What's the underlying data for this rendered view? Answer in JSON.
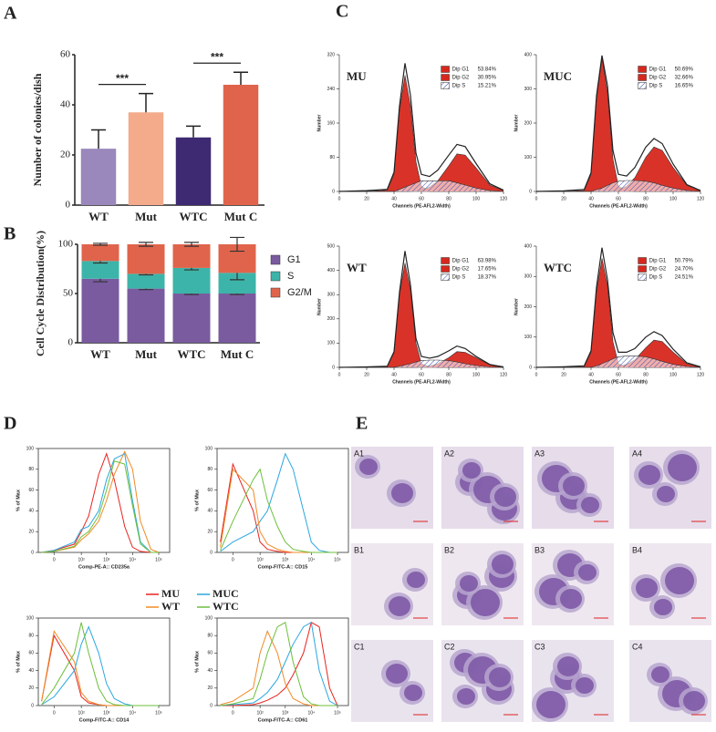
{
  "panel_labels": [
    "A",
    "B",
    "C",
    "D",
    "E"
  ],
  "chart_data": [
    {
      "type": "bar",
      "ylabel": "Number of colonies/dish",
      "categories": [
        "WT",
        "Mut",
        "WTC",
        "Mut C"
      ],
      "values": [
        22.5,
        37,
        27,
        48
      ],
      "errors": [
        7.5,
        7.5,
        4.5,
        5
      ],
      "colors": [
        "#9a87bb",
        "#f3ab8c",
        "#3e2a72",
        "#e0644b"
      ],
      "ylim": [
        0,
        60
      ],
      "yticks": [
        0,
        20,
        40,
        60
      ],
      "annotations": [
        "***",
        "***"
      ]
    },
    {
      "type": "stacked_bar",
      "ylabel": "Cell Cycle Distribution(%)",
      "categories": [
        "WT",
        "Mut",
        "WTC",
        "Mut C"
      ],
      "series": [
        {
          "name": "G1",
          "color": "#7a5b9f",
          "values": [
            65,
            55,
            50,
            50
          ],
          "errors": [
            3,
            1,
            1,
            1
          ]
        },
        {
          "name": "S",
          "color": "#3db4a9",
          "values": [
            18,
            15,
            26,
            21
          ],
          "errors": [
            2,
            1,
            2,
            7
          ]
        },
        {
          "name": "G2/M",
          "color": "#e0644b",
          "values": [
            17,
            30,
            24,
            29
          ],
          "errors": [
            1,
            2,
            2,
            7
          ]
        }
      ],
      "ylim": [
        0,
        100
      ],
      "yticks": [
        0,
        50,
        100
      ]
    },
    {
      "type": "area",
      "label": "MU",
      "xlabel": "Channels (PE-AFL2-Width)",
      "ylabel": "Number",
      "x": [
        0,
        20,
        35,
        40,
        44,
        48,
        52,
        56,
        60,
        66,
        72,
        80,
        86,
        92,
        100,
        110,
        120
      ],
      "xlim": [
        0,
        120
      ],
      "xticks": [
        0,
        20,
        40,
        60,
        80,
        100,
        120
      ],
      "ylim": [
        0,
        320
      ],
      "yticks": [
        0,
        80,
        160,
        240,
        320
      ],
      "categories": [
        "Dip G1",
        "Dip G2",
        "Dip S"
      ],
      "values": [
        53.84,
        30.95,
        15.21
      ],
      "value_labels": [
        "53.84%",
        "30.95%",
        "15.21%"
      ],
      "series": [
        {
          "color": "#d7281e",
          "style": "area",
          "values": [
            0,
            0,
            3,
            40,
            190,
            272,
            200,
            70,
            12,
            0,
            0,
            0,
            0,
            0,
            0,
            0,
            0
          ]
        },
        {
          "color": "#d7281e",
          "style": "area",
          "values": [
            0,
            0,
            0,
            0,
            0,
            0,
            0,
            1,
            3,
            10,
            25,
            60,
            88,
            85,
            55,
            15,
            2
          ]
        },
        {
          "color": "#3b4fb0",
          "style": "hatch",
          "values": [
            0,
            0,
            0,
            0,
            5,
            10,
            15,
            20,
            25,
            25,
            25,
            25,
            20,
            15,
            8,
            2,
            0
          ]
        },
        {
          "color": "#222222",
          "style": "line",
          "values": [
            0,
            2,
            5,
            45,
            200,
            300,
            225,
            90,
            40,
            35,
            50,
            85,
            110,
            105,
            65,
            18,
            3
          ]
        }
      ]
    },
    {
      "type": "area",
      "label": "MUC",
      "xlabel": "Channels (PE-AFL2-Width)",
      "ylabel": "Number",
      "x": [
        0,
        20,
        35,
        40,
        44,
        48,
        52,
        56,
        60,
        66,
        72,
        80,
        86,
        92,
        100,
        110,
        120
      ],
      "xlim": [
        0,
        120
      ],
      "xticks": [
        0,
        20,
        40,
        60,
        80,
        100,
        120
      ],
      "ylim": [
        0,
        400
      ],
      "yticks": [
        0,
        100,
        200,
        300,
        400
      ],
      "categories": [
        "Dip G1",
        "Dip G2",
        "Dip S"
      ],
      "values": [
        50.69,
        32.66,
        16.65
      ],
      "value_labels": [
        "50.69%",
        "32.66%",
        "16.65%"
      ],
      "series": [
        {
          "color": "#d7281e",
          "style": "area",
          "values": [
            0,
            0,
            3,
            50,
            270,
            390,
            290,
            95,
            15,
            2,
            0,
            0,
            0,
            0,
            0,
            0,
            0
          ]
        },
        {
          "color": "#d7281e",
          "style": "area",
          "values": [
            0,
            0,
            0,
            0,
            0,
            0,
            0,
            1,
            4,
            15,
            40,
            100,
            130,
            120,
            70,
            18,
            2
          ]
        },
        {
          "color": "#3b4fb0",
          "style": "hatch",
          "values": [
            0,
            0,
            0,
            0,
            5,
            10,
            18,
            25,
            30,
            32,
            32,
            30,
            25,
            18,
            10,
            3,
            0
          ]
        },
        {
          "color": "#222222",
          "style": "line",
          "values": [
            0,
            2,
            6,
            55,
            280,
            398,
            310,
            120,
            50,
            45,
            70,
            130,
            155,
            140,
            80,
            20,
            3
          ]
        }
      ]
    },
    {
      "type": "area",
      "label": "WT",
      "xlabel": "Channels (PE-AFL2-Width)",
      "ylabel": "Number",
      "x": [
        0,
        20,
        35,
        40,
        44,
        48,
        52,
        56,
        60,
        66,
        72,
        80,
        86,
        92,
        100,
        110,
        120
      ],
      "xlim": [
        0,
        120
      ],
      "xticks": [
        0,
        20,
        40,
        60,
        80,
        100,
        120
      ],
      "ylim": [
        0,
        500
      ],
      "yticks": [
        0,
        100,
        200,
        300,
        400,
        500
      ],
      "categories": [
        "Dip G1",
        "Dip G2",
        "Dip S"
      ],
      "values": [
        63.98,
        17.65,
        18.37
      ],
      "value_labels": [
        "63.98%",
        "17.65%",
        "18.37%"
      ],
      "series": [
        {
          "color": "#d7281e",
          "style": "area",
          "values": [
            0,
            0,
            3,
            60,
            300,
            430,
            320,
            100,
            15,
            2,
            0,
            0,
            0,
            0,
            0,
            0,
            0
          ]
        },
        {
          "color": "#d7281e",
          "style": "area",
          "values": [
            0,
            0,
            0,
            0,
            0,
            0,
            0,
            0,
            2,
            6,
            15,
            40,
            65,
            62,
            40,
            10,
            1
          ]
        },
        {
          "color": "#3b4fb0",
          "style": "hatch",
          "values": [
            0,
            0,
            0,
            0,
            5,
            10,
            15,
            22,
            28,
            30,
            30,
            28,
            22,
            15,
            8,
            2,
            0
          ]
        },
        {
          "color": "#222222",
          "style": "line",
          "values": [
            0,
            2,
            5,
            65,
            310,
            480,
            340,
            120,
            45,
            38,
            45,
            68,
            88,
            78,
            45,
            12,
            2
          ]
        }
      ]
    },
    {
      "type": "area",
      "label": "WTC",
      "xlabel": "Channels (PE-AFL2-Width)",
      "ylabel": "Number",
      "x": [
        0,
        20,
        35,
        40,
        44,
        48,
        52,
        56,
        60,
        66,
        72,
        80,
        86,
        92,
        100,
        110,
        120
      ],
      "xlim": [
        0,
        120
      ],
      "xticks": [
        0,
        20,
        40,
        60,
        80,
        100,
        120
      ],
      "ylim": [
        0,
        400
      ],
      "yticks": [
        0,
        100,
        200,
        300,
        400
      ],
      "categories": [
        "Dip G1",
        "Dip G2",
        "Dip S"
      ],
      "values": [
        50.79,
        24.7,
        24.51
      ],
      "value_labels": [
        "50.79%",
        "24.70%",
        "24.51%"
      ],
      "series": [
        {
          "color": "#d7281e",
          "style": "area",
          "values": [
            0,
            0,
            2,
            50,
            250,
            360,
            270,
            85,
            12,
            1,
            0,
            0,
            0,
            0,
            0,
            0,
            0
          ]
        },
        {
          "color": "#d7281e",
          "style": "area",
          "values": [
            0,
            0,
            0,
            0,
            0,
            0,
            0,
            1,
            3,
            10,
            25,
            65,
            90,
            85,
            50,
            12,
            1
          ]
        },
        {
          "color": "#3b4fb0",
          "style": "hatch",
          "values": [
            0,
            0,
            0,
            0,
            5,
            12,
            20,
            28,
            35,
            38,
            38,
            35,
            28,
            20,
            10,
            3,
            0
          ]
        },
        {
          "color": "#222222",
          "style": "line",
          "values": [
            0,
            2,
            5,
            55,
            265,
            395,
            290,
            115,
            50,
            50,
            62,
            100,
            118,
            105,
            60,
            15,
            2
          ]
        }
      ]
    },
    {
      "type": "line",
      "xscale": "symlog",
      "xlabel": "Comp-PE-A:: CD235a",
      "ylabel": "% of Max",
      "x": [
        -20,
        0,
        50,
        100,
        200,
        500,
        1000,
        2000,
        5000,
        10000,
        20000,
        50000,
        100000
      ],
      "xlim": [
        -30,
        262144
      ],
      "xticks": [
        0,
        {
          "value": 100,
          "label": "10²"
        },
        {
          "value": 1000,
          "label": "10³"
        },
        {
          "value": 10000,
          "label": "10⁴"
        },
        {
          "value": 100000,
          "label": "10⁵"
        }
      ],
      "ylim": [
        0,
        100
      ],
      "yticks": [
        0,
        20,
        40,
        60,
        80,
        100
      ],
      "series": [
        {
          "name": "MU",
          "color": "#e8231f",
          "values": [
            0,
            2,
            8,
            20,
            35,
            75,
            95,
            70,
            25,
            5,
            1,
            0,
            0
          ]
        },
        {
          "name": "MUC",
          "color": "#2aa7e0",
          "values": [
            0,
            2,
            10,
            22,
            25,
            40,
            70,
            90,
            95,
            50,
            10,
            0,
            0
          ]
        },
        {
          "name": "WT",
          "color": "#f08a24",
          "values": [
            0,
            1,
            5,
            12,
            18,
            30,
            50,
            75,
            97,
            80,
            30,
            3,
            0
          ]
        },
        {
          "name": "WTC",
          "color": "#6cbf3a",
          "values": [
            0,
            1,
            6,
            15,
            20,
            35,
            60,
            88,
            85,
            45,
            8,
            0,
            0
          ]
        }
      ]
    },
    {
      "type": "line",
      "xscale": "symlog",
      "xlabel": "Comp-FITC-A:: CD15",
      "ylabel": "% of Max",
      "x": [
        -20,
        0,
        50,
        100,
        200,
        500,
        1000,
        2000,
        5000,
        10000,
        20000,
        50000,
        100000
      ],
      "xlim": [
        -30,
        262144
      ],
      "xticks": [
        0,
        {
          "value": 100,
          "label": "10²"
        },
        {
          "value": 1000,
          "label": "10³"
        },
        {
          "value": 10000,
          "label": "10⁴"
        },
        {
          "value": 100000,
          "label": "10⁵"
        }
      ],
      "ylim": [
        0,
        100
      ],
      "yticks": [
        0,
        20,
        40,
        60,
        80,
        100
      ],
      "series": [
        {
          "color": "#e8231f",
          "values": [
            10,
            85,
            40,
            10,
            3,
            1,
            0,
            0,
            0,
            0,
            0,
            0,
            0
          ]
        },
        {
          "color": "#2aa7e0",
          "values": [
            1,
            10,
            20,
            30,
            40,
            70,
            95,
            80,
            40,
            10,
            2,
            0,
            0
          ]
        },
        {
          "color": "#f08a24",
          "values": [
            5,
            80,
            60,
            20,
            8,
            3,
            1,
            0,
            0,
            0,
            0,
            0,
            0
          ]
        },
        {
          "color": "#6cbf3a",
          "values": [
            2,
            30,
            70,
            80,
            50,
            25,
            10,
            3,
            1,
            0,
            0,
            0,
            0
          ]
        }
      ]
    },
    {
      "type": "line",
      "xscale": "symlog",
      "xlabel": "Comp-FITC-A:: CD14",
      "ylabel": "% of Max",
      "x": [
        -20,
        0,
        50,
        100,
        200,
        500,
        1000,
        2000,
        5000,
        10000,
        20000,
        50000,
        100000
      ],
      "xlim": [
        -30,
        262144
      ],
      "xticks": [
        0,
        {
          "value": 100,
          "label": "10²"
        },
        {
          "value": 1000,
          "label": "10³"
        },
        {
          "value": 10000,
          "label": "10⁴"
        },
        {
          "value": 100000,
          "label": "10⁵"
        }
      ],
      "ylim": [
        0,
        100
      ],
      "yticks": [
        0,
        20,
        40,
        60,
        80,
        100
      ],
      "series": [
        {
          "color": "#e8231f",
          "values": [
            5,
            80,
            40,
            10,
            3,
            1,
            0,
            0,
            0,
            0,
            0,
            0,
            0
          ]
        },
        {
          "color": "#2aa7e0",
          "values": [
            1,
            10,
            40,
            70,
            90,
            60,
            25,
            8,
            2,
            0,
            0,
            0,
            0
          ]
        },
        {
          "color": "#f08a24",
          "values": [
            5,
            85,
            50,
            15,
            5,
            1,
            0,
            0,
            0,
            0,
            0,
            0,
            0
          ]
        },
        {
          "color": "#6cbf3a",
          "values": [
            1,
            20,
            60,
            95,
            60,
            20,
            5,
            1,
            0,
            0,
            0,
            0,
            0
          ]
        }
      ]
    },
    {
      "type": "line",
      "xscale": "symlog",
      "xlabel": "Comp-FITC-A:: CD61",
      "ylabel": "% of Max",
      "x": [
        -20,
        0,
        50,
        100,
        200,
        500,
        1000,
        2000,
        5000,
        10000,
        20000,
        50000,
        100000
      ],
      "xlim": [
        -30,
        262144
      ],
      "xticks": [
        0,
        {
          "value": 100,
          "label": "10²"
        },
        {
          "value": 1000,
          "label": "10³"
        },
        {
          "value": 10000,
          "label": "10⁴"
        },
        {
          "value": 100000,
          "label": "10⁵"
        }
      ],
      "ylim": [
        0,
        100
      ],
      "yticks": [
        0,
        20,
        40,
        60,
        80,
        100
      ],
      "series": [
        {
          "color": "#e8231f",
          "values": [
            0,
            0,
            1,
            3,
            6,
            12,
            20,
            35,
            60,
            95,
            90,
            20,
            0
          ]
        },
        {
          "color": "#2aa7e0",
          "values": [
            0,
            1,
            3,
            8,
            15,
            30,
            50,
            70,
            90,
            95,
            40,
            5,
            0
          ]
        },
        {
          "color": "#f08a24",
          "values": [
            1,
            5,
            20,
            60,
            85,
            60,
            25,
            8,
            2,
            0,
            0,
            0,
            0
          ]
        },
        {
          "color": "#6cbf3a",
          "values": [
            0,
            2,
            8,
            30,
            60,
            90,
            95,
            50,
            10,
            2,
            0,
            0,
            0
          ]
        }
      ]
    }
  ],
  "micrographs": {
    "labels": [
      "A1",
      "A2",
      "A3",
      "A4",
      "B1",
      "B2",
      "B3",
      "B4",
      "C1",
      "C2",
      "C3",
      "C4"
    ]
  }
}
